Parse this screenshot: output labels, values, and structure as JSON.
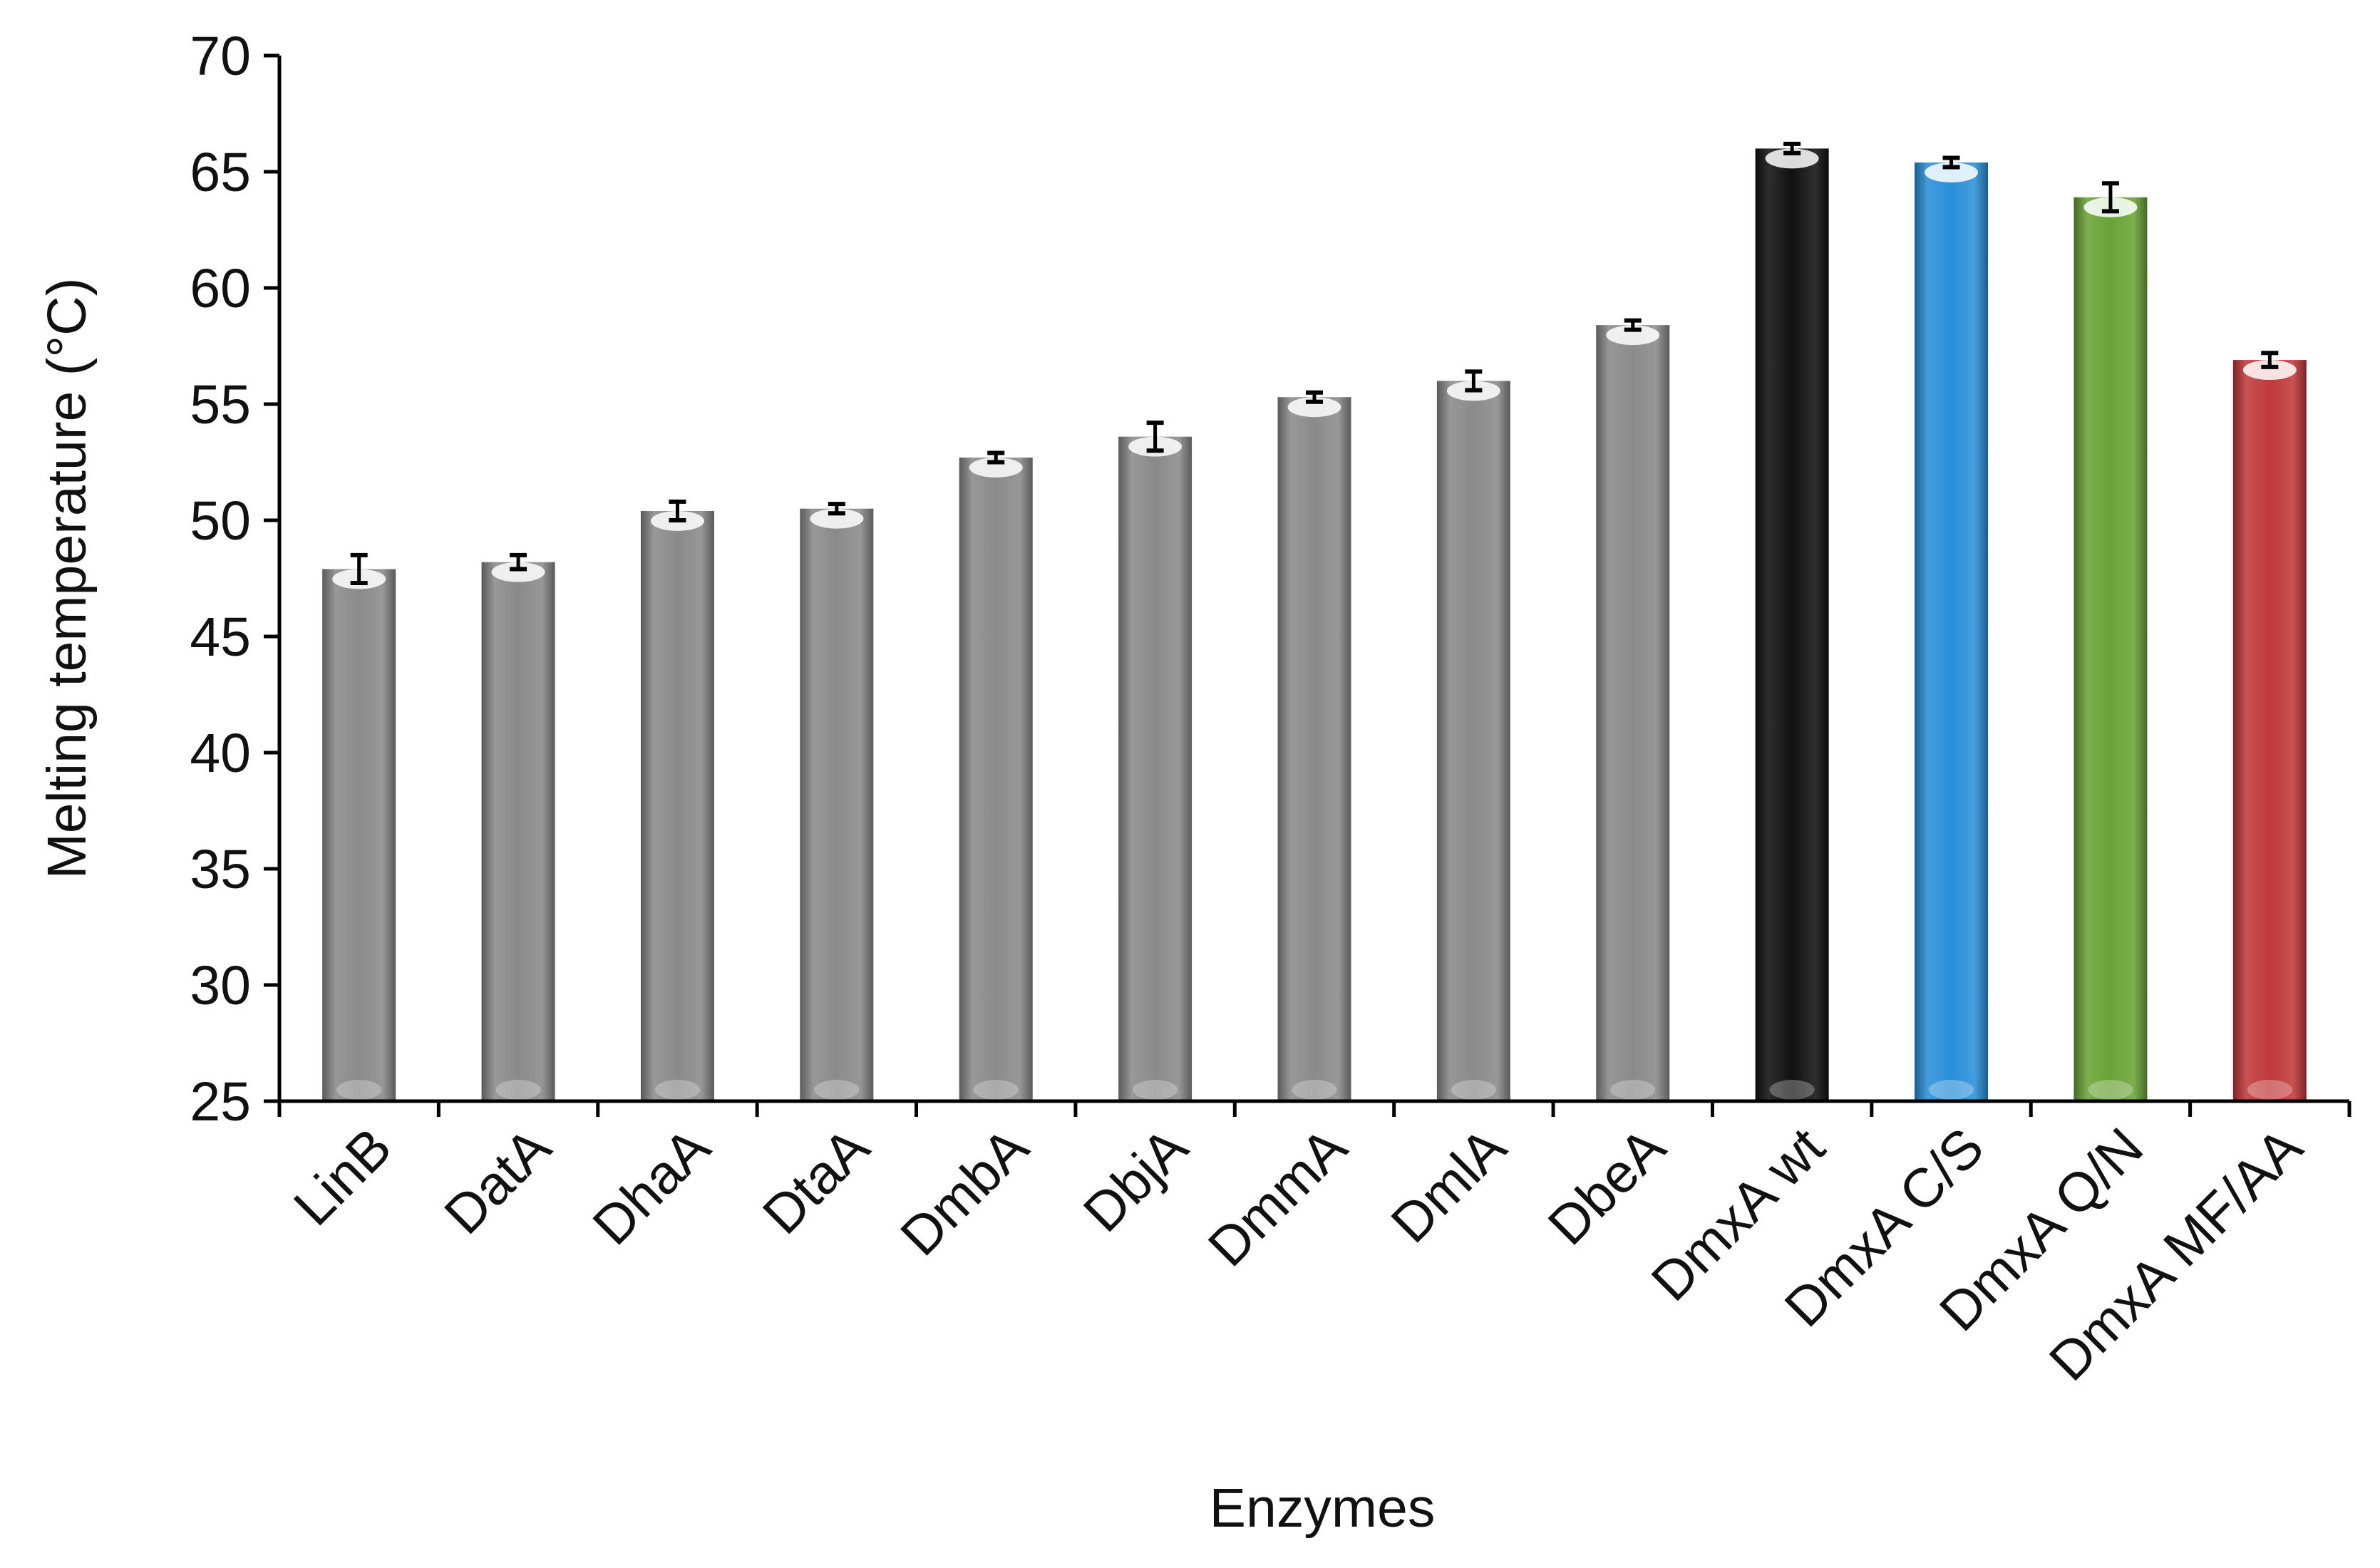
{
  "chart_data": {
    "type": "bar",
    "title": "",
    "xlabel": "Enzymes",
    "ylabel": "Melting temperature (°C)",
    "ylim": [
      25,
      70
    ],
    "yticks": [
      25,
      30,
      35,
      40,
      45,
      50,
      55,
      60,
      65,
      70
    ],
    "grid": false,
    "legend": "none",
    "categories": [
      "LinB",
      "DatA",
      "DhaA",
      "DtaA",
      "DmbA",
      "DbjA",
      "DmmA",
      "DmlA",
      "DbeA",
      "DmxA wt",
      "DmxA C/S",
      "DmxA Q/N",
      "DmxA MF/AA"
    ],
    "values": [
      47.9,
      48.2,
      50.4,
      50.5,
      52.7,
      53.6,
      55.3,
      56.0,
      58.4,
      66.0,
      65.4,
      63.9,
      56.9
    ],
    "errors": [
      0.6,
      0.3,
      0.4,
      0.2,
      0.2,
      0.6,
      0.2,
      0.4,
      0.2,
      0.2,
      0.2,
      0.6,
      0.3
    ],
    "colors": [
      "#8a8a8a",
      "#8a8a8a",
      "#8a8a8a",
      "#8a8a8a",
      "#8a8a8a",
      "#8a8a8a",
      "#8a8a8a",
      "#8a8a8a",
      "#8a8a8a",
      "#111111",
      "#2a90d8",
      "#6aa336",
      "#c0393a"
    ]
  }
}
